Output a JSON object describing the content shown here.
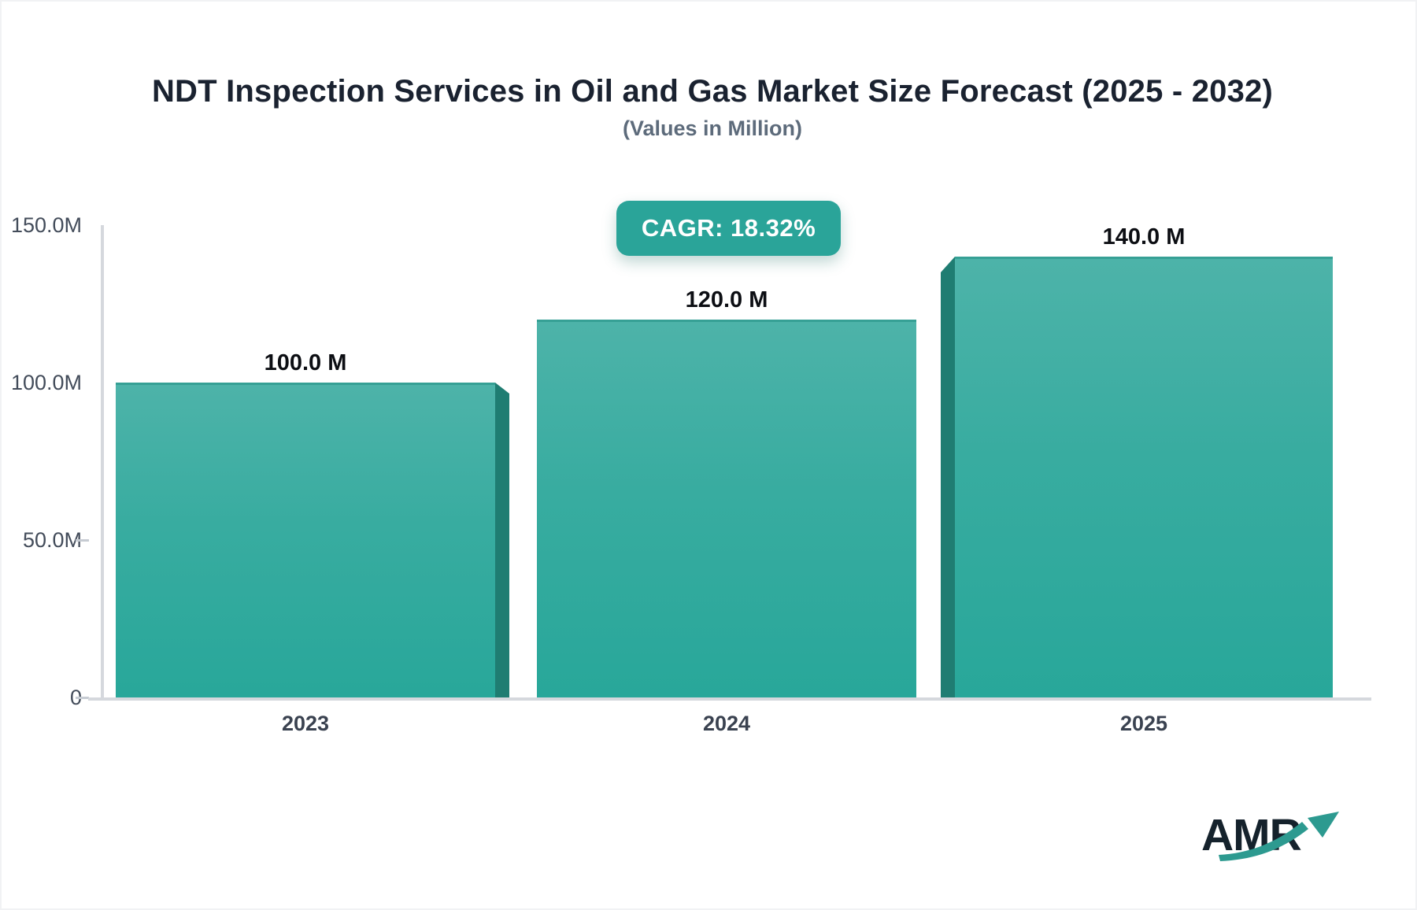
{
  "chart_data": {
    "type": "bar",
    "title": "NDT Inspection Services in Oil and Gas Market Size Forecast (2025 - 2032)",
    "subtitle": "(Values in Million)",
    "unit": "Million",
    "categories": [
      "2023",
      "2024",
      "2025"
    ],
    "values": [
      100.0,
      120.0,
      140.0
    ],
    "bar_labels": [
      "100.0 M",
      "120.0 M",
      "140.0 M"
    ],
    "ylim": [
      0,
      150
    ],
    "y_ticks": [
      {
        "label": "150.0M",
        "value": 150,
        "dash": false
      },
      {
        "label": "100.0M",
        "value": 100,
        "dash": false
      },
      {
        "label": "50.0M",
        "value": 50,
        "dash": true
      },
      {
        "label": "0",
        "value": 0,
        "dash": true
      }
    ],
    "xlabel": "",
    "ylabel": "",
    "grid": false,
    "legend": null,
    "style": "3d-perspective-teal",
    "annotations": [
      {
        "text": "CAGR: 18.32%"
      }
    ]
  },
  "logo": {
    "text": "AMR",
    "icon": "growth-arrow-icon"
  },
  "colors": {
    "bg": "#ffffff",
    "title_color": "#1a2230",
    "subtitle_color": "#5d6b7b",
    "badge_bg": "#2aa499",
    "badge_text": "#ffffff",
    "bar_top": "#4db3a9",
    "bar_mid": "#38aca0",
    "bar_bottom": "#28a79a",
    "bar_edge": "#36a095",
    "bar_side": "#1f7d72",
    "axis_color": "#d5d8dd",
    "tick_label_color": "#434c5a",
    "x_label_color": "#3a4250",
    "value_label_color": "#0c0e13",
    "logo_text_color": "#15222c",
    "logo_arrow_color": "#2d9a90"
  }
}
